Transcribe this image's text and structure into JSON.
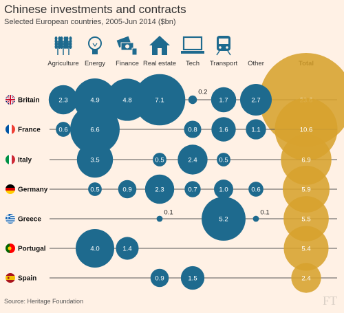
{
  "header": {
    "title": "Chinese investments and contracts",
    "subtitle": "Selected European countries, 2005-Jun 2014 ($bn)"
  },
  "footer": {
    "source": "Source: Heritage Foundation",
    "logo": "FT"
  },
  "colors": {
    "background": "#fff1e5",
    "sector_bubble": "#1e6a8e",
    "total_bubble": "#d7a22e",
    "icon": "#1e6a8e"
  },
  "chart_data": {
    "type": "bubble-matrix",
    "categories": [
      "Agriculture",
      "Energy",
      "Finance",
      "Real estate",
      "Tech",
      "Transport",
      "Other",
      "Total"
    ],
    "category_icons": [
      "wheat-icon",
      "lightbulb-icon",
      "banknotes-icon",
      "house-icon",
      "laptop-icon",
      "train-icon",
      "",
      ""
    ],
    "rows": [
      {
        "country": "Britain",
        "flag": "uk-flag-icon",
        "values": [
          2.3,
          4.9,
          4.8,
          7.1,
          0.2,
          1.7,
          2.7,
          23.6
        ]
      },
      {
        "country": "France",
        "flag": "france-flag-icon",
        "values": [
          0.6,
          6.6,
          null,
          null,
          0.8,
          1.6,
          1.1,
          10.6
        ]
      },
      {
        "country": "Italy",
        "flag": "italy-flag-icon",
        "values": [
          null,
          3.5,
          null,
          0.5,
          2.4,
          0.5,
          null,
          6.9
        ]
      },
      {
        "country": "Germany",
        "flag": "germany-flag-icon",
        "values": [
          null,
          0.5,
          0.9,
          2.3,
          0.7,
          1.0,
          0.6,
          5.9
        ]
      },
      {
        "country": "Greece",
        "flag": "greece-flag-icon",
        "values": [
          null,
          null,
          null,
          0.1,
          null,
          5.2,
          0.1,
          5.5
        ]
      },
      {
        "country": "Portugal",
        "flag": "portugal-flag-icon",
        "values": [
          null,
          4.0,
          1.4,
          null,
          null,
          null,
          null,
          5.4
        ]
      },
      {
        "country": "Spain",
        "flag": "spain-flag-icon",
        "values": [
          null,
          null,
          null,
          0.9,
          1.5,
          null,
          null,
          2.4
        ]
      }
    ]
  }
}
